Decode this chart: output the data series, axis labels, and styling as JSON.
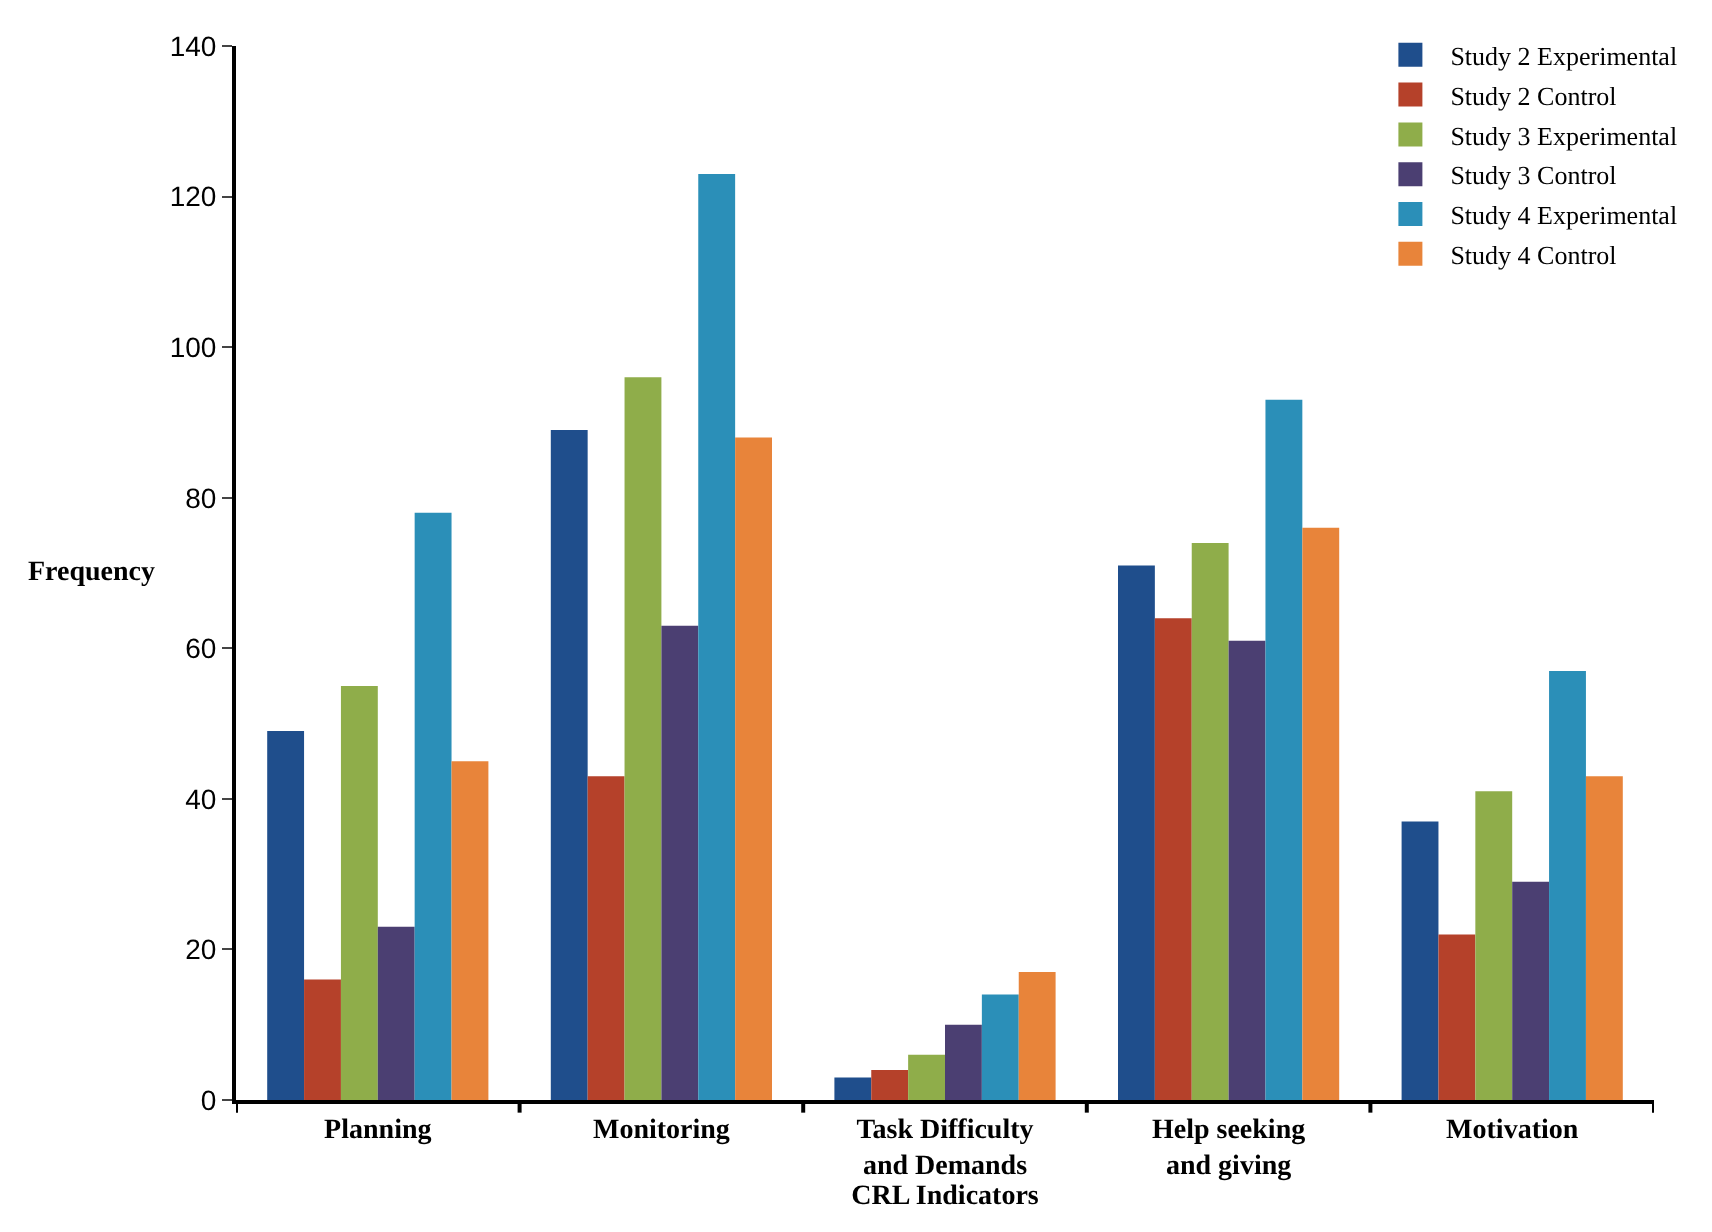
{
  "chart_data": {
    "type": "bar",
    "xlabel": "CRL Indicators",
    "ylabel": "Frequency",
    "categories": [
      "Planning",
      "Monitoring",
      "Task Difficulty and Demands",
      "Help seeking and giving",
      "Motivation"
    ],
    "series": [
      {
        "name": "Study 2 Experimental",
        "color": "#1f4e8c",
        "values": [
          49,
          89,
          3,
          71,
          37
        ]
      },
      {
        "name": "Study 2 Control",
        "color": "#b5412a",
        "values": [
          16,
          43,
          4,
          64,
          22
        ]
      },
      {
        "name": "Study 3 Experimental",
        "color": "#8fad4a",
        "values": [
          55,
          96,
          6,
          74,
          41
        ]
      },
      {
        "name": "Study 3 Control",
        "color": "#4b3f72",
        "values": [
          23,
          63,
          10,
          61,
          29
        ]
      },
      {
        "name": "Study 4 Experimental",
        "color": "#2b8fb8",
        "values": [
          78,
          123,
          14,
          93,
          57
        ]
      },
      {
        "name": "Study 4 Control",
        "color": "#e8843a",
        "values": [
          45,
          88,
          17,
          76,
          43
        ]
      }
    ],
    "ylim": [
      0,
      140
    ],
    "yticks": [
      0,
      20,
      40,
      60,
      80,
      100,
      120,
      140
    ],
    "grid": false,
    "legend": "top right"
  }
}
